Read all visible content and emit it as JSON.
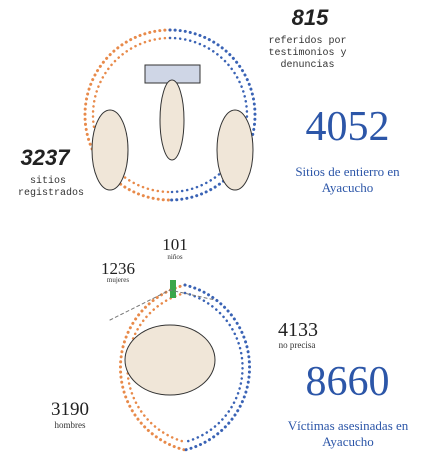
{
  "top": {
    "referred": {
      "number": 815,
      "label": "referidos por testimonios y denuncias"
    },
    "total": {
      "number": 4052,
      "label": "Sitios de entierro en Ayacucho"
    },
    "registered": {
      "number": 3237,
      "label": "sitios registrados"
    }
  },
  "bottom": {
    "children": {
      "number": 101,
      "label": "niños"
    },
    "women": {
      "number": 1236,
      "label": "mujeres"
    },
    "unspecified": {
      "number": 4133,
      "label": "no precisa"
    },
    "total": {
      "number": 8660,
      "label": "Víctimas asesinadas en Ayacucho"
    },
    "men": {
      "number": 3190,
      "label": "hombres"
    }
  }
}
